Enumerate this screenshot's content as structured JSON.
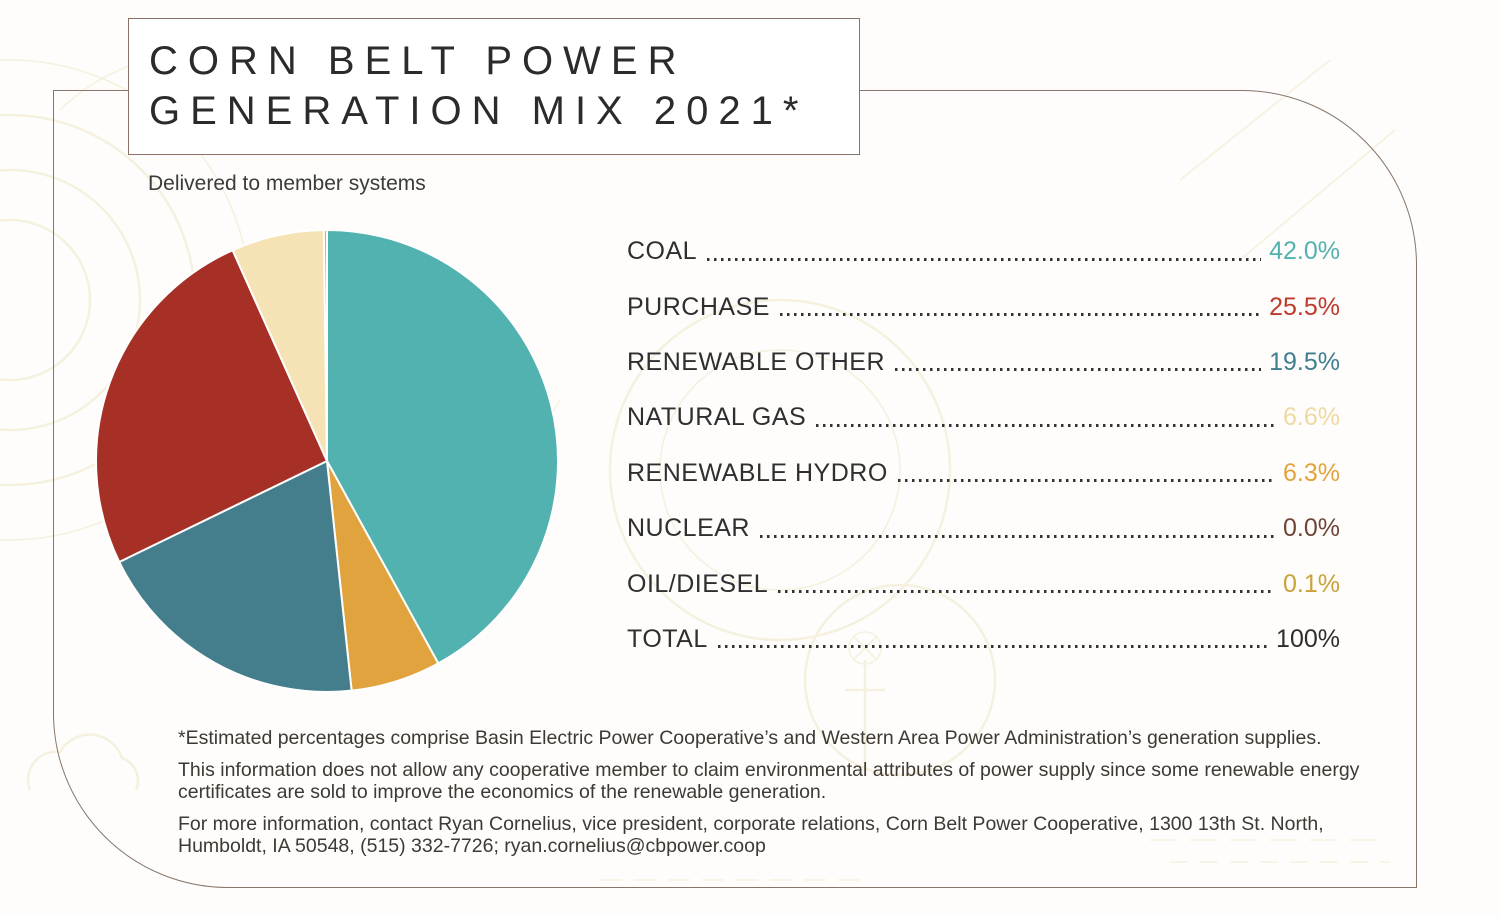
{
  "header": {
    "title_line1": "CORN BELT POWER",
    "title_line2": "GENERATION MIX 2021*",
    "subtitle": "Delivered to member systems"
  },
  "colors": {
    "frame_border": "#877569",
    "title_border": "#8a7365",
    "text_dark": "#2b2b2b",
    "text_body": "#3e3933",
    "leader_dots": "#333333",
    "watermark": "#f0e6c9",
    "background": "#fefdfb"
  },
  "chart_data": {
    "type": "pie",
    "title": "Corn Belt Power Generation Mix 2021*",
    "subtitle": "Delivered to member systems",
    "unit": "%",
    "legend_position": "right",
    "rows": [
      {
        "label": "COAL",
        "value": 42.0,
        "display": "42.0%",
        "slice_color": "#52b2b0",
        "value_color": "#52b2b0"
      },
      {
        "label": "PURCHASE",
        "value": 25.5,
        "display": "25.5%",
        "slice_color": "#a63026",
        "value_color": "#bd3a2b"
      },
      {
        "label": "RENEWABLE OTHER",
        "value": 19.5,
        "display": "19.5%",
        "slice_color": "#447e8c",
        "value_color": "#3f7e8f"
      },
      {
        "label": "NATURAL GAS",
        "value": 6.6,
        "display": "6.6%",
        "slice_color": "#f5e3b5",
        "value_color": "#eed9a4"
      },
      {
        "label": "RENEWABLE HYDRO",
        "value": 6.3,
        "display": "6.3%",
        "slice_color": "#e1a33d",
        "value_color": "#e2a33c"
      },
      {
        "label": "NUCLEAR",
        "value": 0.0,
        "display": "0.0%",
        "slice_color": "#6e4638",
        "value_color": "#6e4638"
      },
      {
        "label": "OIL/DIESEL",
        "value": 0.1,
        "display": "0.1%",
        "slice_color": "#d7b94e",
        "value_color": "#c9a23c"
      }
    ],
    "total_row": {
      "label": "TOTAL",
      "value": 100,
      "display": "100%",
      "value_color": "#2e2e2e"
    },
    "pie": {
      "start_angle_deg": 0,
      "direction": "clockwise",
      "order": [
        "COAL",
        "RENEWABLE HYDRO",
        "RENEWABLE OTHER",
        "PURCHASE",
        "NATURAL GAS",
        "OIL/DIESEL",
        "NUCLEAR"
      ],
      "min_visible_angle_deg": 0.8,
      "gap_color": "#ffffff"
    }
  },
  "footnotes": [
    "*Estimated percentages comprise Basin Electric Power Cooperative’s and Western Area Power Administration’s generation supplies.",
    "This information does not allow any cooperative member to claim environmental attributes of power supply since some renewable energy certificates are sold to improve the economics of the renewable generation.",
    "For more information, contact Ryan Cornelius, vice president, corporate relations, Corn Belt Power Cooperative, 1300 13th St. North, Humboldt, IA 50548, (515) 332-7726; ryan.cornelius@cbpower.coop"
  ]
}
